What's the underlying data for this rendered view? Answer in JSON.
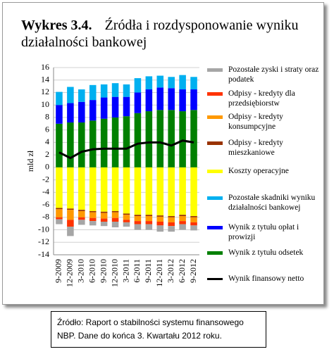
{
  "chart_data": {
    "type": "bar",
    "figure_label": "Wykres 3.4.",
    "title": "Źródła i rozdysponowanie wyniku działalności bankowej",
    "y_label": "mld zł",
    "categories": [
      "9-2009",
      "12-2009",
      "3-2010",
      "6-2010",
      "9-2010",
      "12-2010",
      "3-2011",
      "6-2011",
      "9-2011",
      "12-2011",
      "3-2012",
      "6-2012",
      "9-2012"
    ],
    "ylim": [
      -14,
      16
    ],
    "yticks": [
      -14,
      -12,
      -10,
      -8,
      -6,
      -4,
      -2,
      0,
      2,
      4,
      6,
      8,
      10,
      12,
      14,
      16
    ],
    "grid": true,
    "series": [
      {
        "name": "Pozostałe zyski i straty oraz podatek",
        "color": "#a6a6a6",
        "values": [
          -0.8,
          -1.5,
          -0.8,
          -0.7,
          -0.7,
          -0.9,
          -0.7,
          -0.9,
          -0.9,
          -1.0,
          -0.9,
          -0.9,
          -0.8
        ]
      },
      {
        "name": "Odpisy - kredyty dla przedsiębiorstw",
        "color": "#ff3300",
        "values": [
          -0.3,
          -1.1,
          -0.4,
          -0.5,
          -0.5,
          -0.6,
          -0.4,
          -0.5,
          -0.5,
          -0.6,
          -0.6,
          -0.5,
          -0.5
        ]
      },
      {
        "name": "Odpisy - kredyty konsumpcyjne",
        "color": "#ff9900",
        "values": [
          -1.3,
          -1.6,
          -1.0,
          -0.9,
          -0.9,
          -0.9,
          -0.8,
          -0.8,
          -0.8,
          -0.8,
          -0.8,
          -0.8,
          -0.8
        ]
      },
      {
        "name": "Odpisy - kredyty mieszkaniowe",
        "color": "#993300",
        "values": [
          -0.2,
          -0.2,
          -0.2,
          -0.2,
          -0.2,
          -0.2,
          -0.2,
          -0.2,
          -0.2,
          -0.2,
          -0.2,
          -0.2,
          -0.2
        ]
      },
      {
        "name": "Koszty operacyjne",
        "color": "#ffff00",
        "values": [
          -6.5,
          -6.6,
          -6.8,
          -7.0,
          -7.1,
          -7.0,
          -7.4,
          -7.6,
          -7.6,
          -7.7,
          -7.8,
          -7.6,
          -7.8
        ]
      },
      {
        "name": "Pozostałe skadniki wyniku działalności bankowej",
        "color": "#00b0f0",
        "values": [
          2.1,
          2.6,
          2.0,
          2.4,
          2.1,
          2.2,
          2.0,
          2.3,
          2.1,
          1.9,
          1.8,
          2.3,
          2.0
        ]
      },
      {
        "name": "Wynik z tytułu opłat i prowizji",
        "color": "#0000ff",
        "values": [
          3.0,
          3.1,
          3.3,
          3.3,
          3.4,
          3.3,
          3.1,
          3.3,
          3.5,
          3.6,
          3.5,
          3.5,
          3.3
        ]
      },
      {
        "name": "Wynik z tytułu odsetek",
        "color": "#008000",
        "values": [
          7.0,
          7.2,
          7.2,
          7.5,
          7.8,
          8.0,
          8.2,
          8.7,
          9.0,
          9.2,
          9.2,
          9.0,
          9.2
        ]
      },
      {
        "name": "Wynik finansowy netto",
        "color": "#000000",
        "type": "line",
        "values": [
          2.4,
          1.5,
          2.5,
          2.9,
          3.0,
          3.0,
          3.0,
          3.8,
          4.0,
          4.0,
          3.5,
          4.3,
          4.0
        ]
      }
    ]
  },
  "source": "Źródło: Raport o stabilności systemu finansowego NBP. Dane do końca 3. Kwartału 2012 roku."
}
